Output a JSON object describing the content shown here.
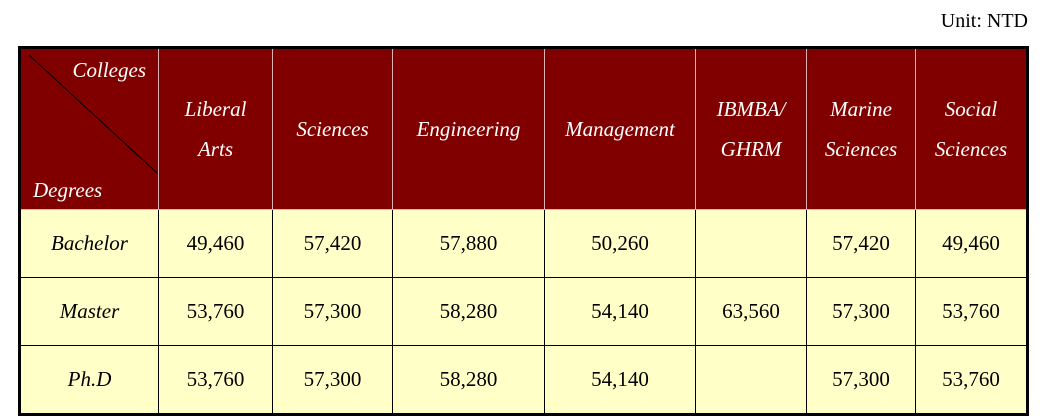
{
  "unit": "Unit: NTD",
  "table": {
    "corner": {
      "columns_label": "Colleges",
      "rows_label": "Degrees"
    },
    "columns": [
      "Liberal\nArts",
      "Sciences",
      "Engineering",
      "Management",
      "IBMBA/\nGHRM",
      "Marine\nSciences",
      "Social\nSciences"
    ],
    "rows": [
      {
        "label": "Bachelor",
        "cells": [
          "49,460",
          "57,420",
          "57,880",
          "50,260",
          null,
          "57,420",
          "49,460"
        ]
      },
      {
        "label": "Master",
        "cells": [
          "53,760",
          "57,300",
          "58,280",
          "54,140",
          "63,560",
          "57,300",
          "53,760"
        ]
      },
      {
        "label": "Ph.D",
        "cells": [
          "53,760",
          "57,300",
          "58,280",
          "54,140",
          null,
          "57,300",
          "53,760"
        ]
      }
    ]
  }
}
